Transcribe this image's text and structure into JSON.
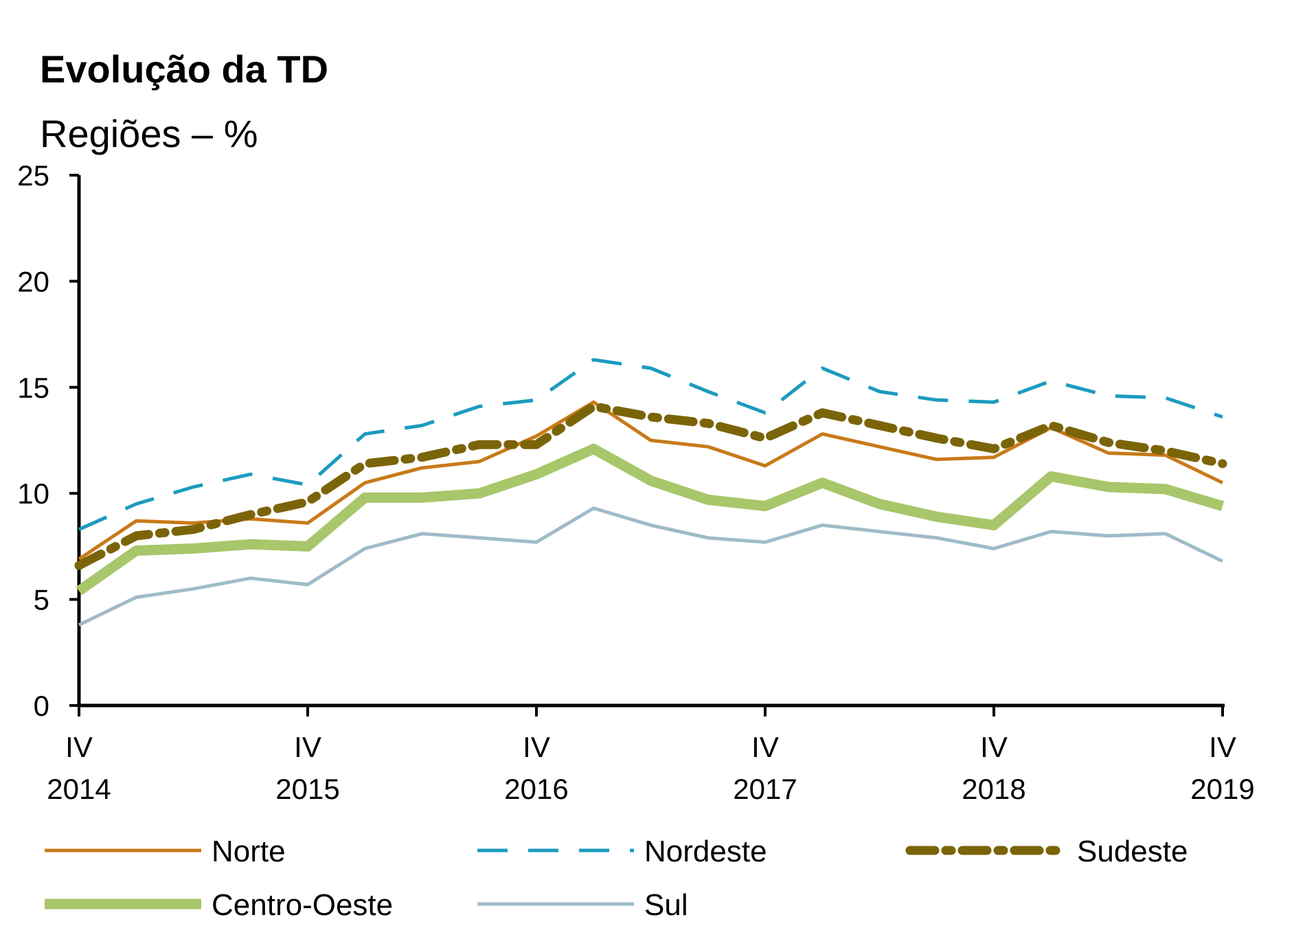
{
  "chart_data": {
    "type": "line",
    "title": "Evolução da TD",
    "subtitle": "Regiões – %",
    "ylim": [
      0,
      25
    ],
    "y_ticks": [
      "0",
      "5",
      "10",
      "15",
      "20",
      "25"
    ],
    "x_tick_labels": [
      {
        "quarter": "IV",
        "year": "2014"
      },
      {
        "quarter": "IV",
        "year": "2015"
      },
      {
        "quarter": "IV",
        "year": "2016"
      },
      {
        "quarter": "IV",
        "year": "2017"
      },
      {
        "quarter": "IV",
        "year": "2018"
      },
      {
        "quarter": "IV",
        "year": "2019"
      }
    ],
    "x": [
      "IV 2014",
      "I 2015",
      "II 2015",
      "III 2015",
      "IV 2015",
      "I 2016",
      "II 2016",
      "III 2016",
      "IV 2016",
      "I 2017",
      "II 2017",
      "III 2017",
      "IV 2017",
      "I 2018",
      "II 2018",
      "III 2018",
      "IV 2018",
      "I 2019",
      "II 2019",
      "III 2019",
      "IV 2019"
    ],
    "grid": false,
    "legend_position": "bottom",
    "series": [
      {
        "name": "Norte",
        "color": "#C87A19",
        "style": "solid",
        "width": 5,
        "values": [
          6.9,
          8.7,
          8.6,
          8.8,
          8.6,
          10.5,
          11.2,
          11.5,
          12.7,
          14.3,
          12.5,
          12.2,
          11.3,
          12.8,
          12.2,
          11.6,
          11.7,
          13.1,
          11.9,
          11.8,
          10.5
        ]
      },
      {
        "name": "Nordeste",
        "color": "#1B9BBF",
        "style": "dash",
        "width": 5,
        "values": [
          8.3,
          9.5,
          10.3,
          10.9,
          10.4,
          12.8,
          13.2,
          14.1,
          14.4,
          16.3,
          15.9,
          14.8,
          13.8,
          15.9,
          14.8,
          14.4,
          14.3,
          15.3,
          14.6,
          14.5,
          13.6
        ]
      },
      {
        "name": "Sudeste",
        "color": "#7B6408",
        "style": "dot-dash",
        "width": 13,
        "values": [
          6.6,
          8.0,
          8.3,
          9.0,
          9.6,
          11.4,
          11.7,
          12.3,
          12.3,
          14.1,
          13.6,
          13.3,
          12.6,
          13.8,
          13.2,
          12.6,
          12.1,
          13.2,
          12.4,
          12.0,
          11.4
        ]
      },
      {
        "name": "Centro-Oeste",
        "color": "#A8C66A",
        "style": "solid",
        "width": 15,
        "values": [
          5.4,
          7.3,
          7.4,
          7.6,
          7.5,
          9.8,
          9.8,
          10.0,
          10.9,
          12.1,
          10.6,
          9.7,
          9.4,
          10.5,
          9.5,
          8.9,
          8.5,
          10.8,
          10.3,
          10.2,
          9.4
        ]
      },
      {
        "name": "Sul",
        "color": "#9FBBC8",
        "style": "solid",
        "width": 5,
        "values": [
          3.8,
          5.1,
          5.5,
          6.0,
          5.7,
          7.4,
          8.1,
          7.9,
          7.7,
          9.3,
          8.5,
          7.9,
          7.7,
          8.5,
          8.2,
          7.9,
          7.4,
          8.2,
          8.0,
          8.1,
          6.8
        ]
      }
    ]
  }
}
